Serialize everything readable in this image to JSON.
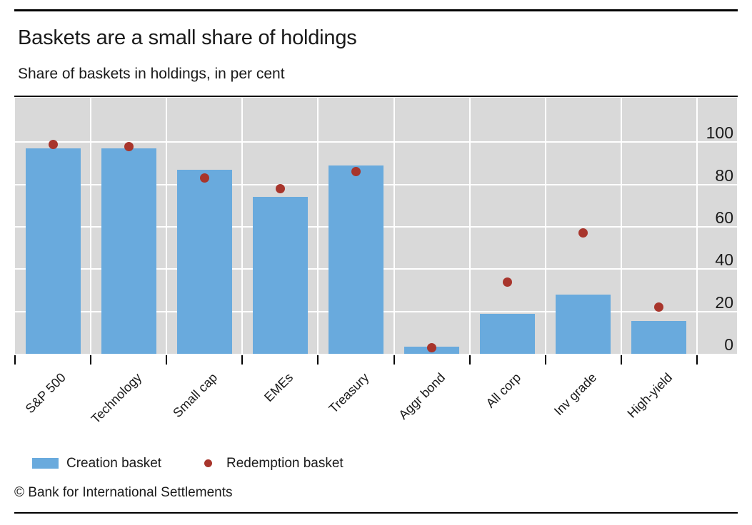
{
  "header": {
    "title": "Baskets are a small share of holdings",
    "subtitle": "Share of baskets in holdings, in per cent"
  },
  "footer": {
    "copyright": "© Bank for International Settlements"
  },
  "colors": {
    "bar_blue": "#69aadd",
    "dot_red": "#a8352c",
    "plot_background": "#d9d9d9",
    "gridline": "#ffffff",
    "text": "#1a1a1a"
  },
  "chart_data": {
    "type": "bar",
    "categories": [
      "S&P 500",
      "Technology",
      "Small cap",
      "EMEs",
      "Treasury",
      "Aggr bond",
      "All corp",
      "Inv grade",
      "High-yield"
    ],
    "series": [
      {
        "name": "Creation basket",
        "type": "bar",
        "values": [
          97,
          97,
          87,
          74,
          89,
          3.5,
          19,
          28,
          15.5
        ]
      },
      {
        "name": "Redemption basket",
        "type": "scatter",
        "values": [
          99,
          98,
          83,
          78,
          86,
          3,
          34,
          57,
          22
        ]
      }
    ],
    "title": "Baskets are a small share of holdings",
    "subtitle": "Share of baskets in holdings, in per cent",
    "xlabel": "",
    "ylabel": "",
    "yticks": [
      0,
      20,
      40,
      60,
      80,
      100
    ],
    "ytick_side": "right",
    "ylim": [
      0,
      121
    ],
    "grid": true,
    "x_tick_label_rotation": 45,
    "legend_position": "bottom"
  }
}
